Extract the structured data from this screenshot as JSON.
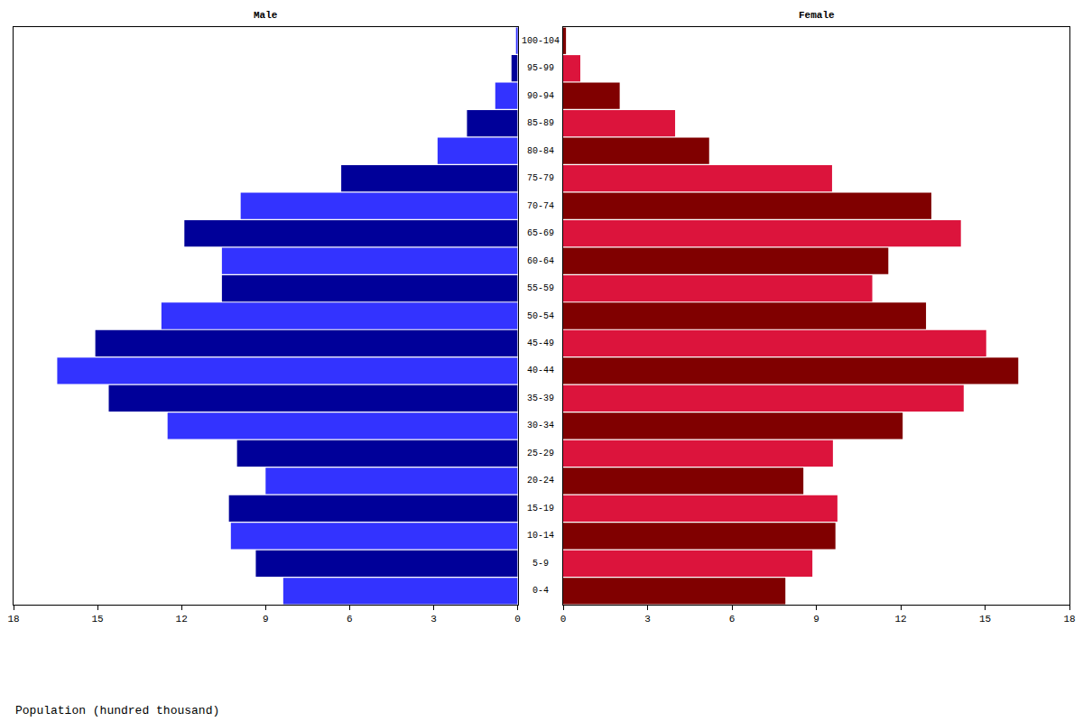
{
  "chart_data": {
    "type": "bar",
    "orientation": "horizontal",
    "x_label": "Population (hundred thousand)",
    "categories": [
      "0-4",
      "5-9",
      "10-14",
      "15-19",
      "20-24",
      "25-29",
      "30-34",
      "35-39",
      "40-44",
      "45-49",
      "50-54",
      "55-59",
      "60-64",
      "65-69",
      "70-74",
      "75-79",
      "80-84",
      "85-89",
      "90-94",
      "95-99",
      "100-104"
    ],
    "series": [
      {
        "name": "Male",
        "colors": [
          "#3333ff",
          "#000099",
          "#3333ff",
          "#000099",
          "#3333ff",
          "#000099",
          "#3333ff",
          "#000099",
          "#3333ff",
          "#000099",
          "#3333ff",
          "#000099",
          "#3333ff",
          "#000099",
          "#3333ff",
          "#000099",
          "#3333ff",
          "#000099",
          "#3333ff",
          "#000099",
          "#3333ff"
        ],
        "values": [
          8.37,
          9.35,
          10.24,
          10.31,
          9.0,
          10.02,
          12.5,
          14.6,
          16.44,
          15.08,
          12.72,
          10.56,
          10.56,
          11.9,
          9.89,
          6.3,
          2.86,
          1.81,
          0.8,
          0.22,
          0.06
        ]
      },
      {
        "name": "Female",
        "colors": [
          "#800000",
          "#dc143c",
          "#800000",
          "#dc143c",
          "#800000",
          "#dc143c",
          "#800000",
          "#dc143c",
          "#800000",
          "#dc143c",
          "#800000",
          "#dc143c",
          "#800000",
          "#dc143c",
          "#800000",
          "#dc143c",
          "#800000",
          "#dc143c",
          "#800000",
          "#dc143c",
          "#800000"
        ],
        "values": [
          7.9,
          8.86,
          9.68,
          9.75,
          8.54,
          9.59,
          12.07,
          14.24,
          16.18,
          15.04,
          12.9,
          10.99,
          11.56,
          14.14,
          13.09,
          9.56,
          5.19,
          3.98,
          2.01,
          0.61,
          0.1
        ]
      }
    ],
    "xlim": [
      0,
      18
    ],
    "xticks": [
      0,
      3,
      6,
      9,
      12,
      15,
      18
    ],
    "grid": false
  }
}
